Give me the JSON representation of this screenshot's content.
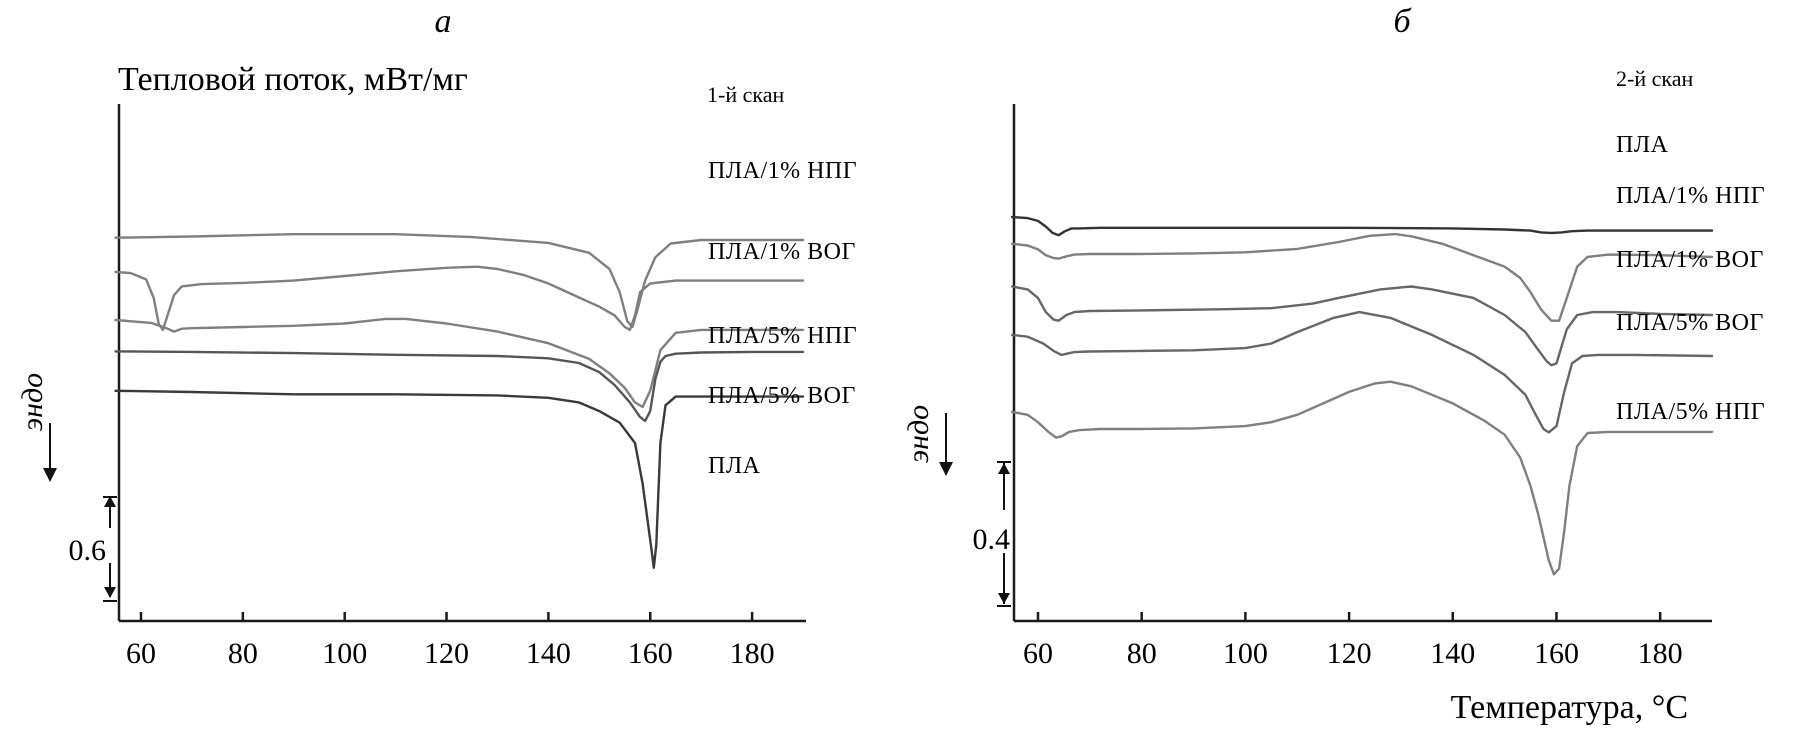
{
  "chart_data": [
    {
      "type": "line",
      "panel_title": "а",
      "scan_label": "1-й скан",
      "ylabel": "Тепловой поток, мВт/мг",
      "xlabel": "",
      "endo_label": "эндо",
      "scale_bar": "0.6",
      "xlim": [
        55,
        190
      ],
      "x_ticks": [
        "60",
        "80",
        "100",
        "120",
        "140",
        "160",
        "180"
      ],
      "y_ticks": [],
      "grid": false,
      "series": [
        {
          "name": "ПЛА/1% НПГ",
          "color": "#7f7f7f",
          "x": [
            55,
            70,
            90,
            110,
            125,
            140,
            148,
            152,
            154,
            155.5,
            156.5,
            157.5,
            159,
            161,
            164,
            170,
            180,
            190
          ],
          "y": [
            1.04,
            1.06,
            1.1,
            1.1,
            1.05,
            0.95,
            0.78,
            0.5,
            0.1,
            -0.4,
            -0.5,
            -0.2,
            0.3,
            0.7,
            0.94,
            1.0,
            1.0,
            1.0
          ]
        },
        {
          "name": "ПЛА/1% ВОГ",
          "color": "#7f7f7f",
          "x": [
            55,
            58,
            61,
            62.5,
            63.5,
            64.3,
            65.2,
            66.5,
            68,
            72,
            80,
            90,
            100,
            110,
            120,
            126,
            130,
            135,
            140,
            145,
            150,
            153,
            155,
            156,
            157,
            158,
            160,
            165,
            175,
            190
          ],
          "y": [
            0.45,
            0.43,
            0.32,
            0.0,
            -0.45,
            -0.55,
            -0.3,
            0.05,
            0.2,
            0.24,
            0.26,
            0.3,
            0.38,
            0.46,
            0.52,
            0.54,
            0.5,
            0.4,
            0.25,
            0.05,
            -0.15,
            -0.3,
            -0.5,
            -0.55,
            -0.3,
            0.1,
            0.25,
            0.3,
            0.3,
            0.3
          ]
        },
        {
          "name": "ПЛА/5% НПГ",
          "color": "#7f7f7f",
          "x": [
            55,
            62,
            65,
            66.5,
            68,
            70,
            80,
            90,
            100,
            108,
            112,
            120,
            130,
            140,
            148,
            152,
            155,
            157,
            158.5,
            160,
            162,
            165,
            170,
            180,
            190
          ],
          "y": [
            -0.38,
            -0.43,
            -0.52,
            -0.58,
            -0.53,
            -0.52,
            -0.5,
            -0.48,
            -0.44,
            -0.36,
            -0.36,
            -0.44,
            -0.58,
            -0.78,
            -1.05,
            -1.3,
            -1.55,
            -1.8,
            -1.88,
            -1.6,
            -0.9,
            -0.6,
            -0.55,
            -0.55,
            -0.55
          ]
        },
        {
          "name": "ПЛА/5% ВОГ",
          "color": "#555555",
          "x": [
            55,
            70,
            90,
            110,
            130,
            140,
            146,
            150,
            153,
            156,
            158,
            159,
            160,
            161,
            162,
            163,
            165,
            170,
            180,
            190
          ],
          "y": [
            -0.92,
            -0.93,
            -0.95,
            -0.98,
            -1.0,
            -1.04,
            -1.12,
            -1.28,
            -1.5,
            -1.8,
            -2.05,
            -2.12,
            -1.95,
            -1.4,
            -1.1,
            -1.0,
            -0.96,
            -0.94,
            -0.93,
            -0.93
          ]
        },
        {
          "name": "ПЛА",
          "color": "#3a3a3a",
          "x": [
            55,
            70,
            90,
            110,
            130,
            140,
            146,
            150,
            154,
            157,
            158.5,
            159.5,
            160.2,
            160.7,
            161.2,
            162,
            163,
            165,
            170,
            180,
            190
          ],
          "y": [
            -1.6,
            -1.62,
            -1.66,
            -1.66,
            -1.68,
            -1.72,
            -1.8,
            -1.95,
            -2.15,
            -2.5,
            -3.2,
            -3.85,
            -4.3,
            -4.65,
            -4.25,
            -2.5,
            -1.85,
            -1.7,
            -1.7,
            -1.7,
            -1.7
          ]
        }
      ]
    },
    {
      "type": "line",
      "panel_title": "б",
      "scan_label": "2-й скан",
      "ylabel": "",
      "xlabel": "Температура, °С",
      "endo_label": "эндо",
      "scale_bar": "0.4",
      "xlim": [
        55,
        190
      ],
      "x_ticks": [
        "60",
        "80",
        "100",
        "120",
        "140",
        "160",
        "180"
      ],
      "y_ticks": [],
      "grid": false,
      "series": [
        {
          "name": "ПЛА",
          "color": "#333333",
          "x": [
            55,
            58,
            60,
            61.5,
            62.8,
            64,
            65.2,
            66.5,
            68,
            72,
            80,
            100,
            120,
            140,
            150,
            155,
            157,
            159,
            161,
            163,
            166,
            175,
            190
          ],
          "y": [
            1.72,
            1.7,
            1.65,
            1.55,
            1.44,
            1.4,
            1.47,
            1.52,
            1.52,
            1.53,
            1.53,
            1.53,
            1.53,
            1.52,
            1.5,
            1.48,
            1.45,
            1.44,
            1.45,
            1.47,
            1.48,
            1.48,
            1.48
          ]
        },
        {
          "name": "ПЛА/1% НПГ",
          "color": "#7f7f7f",
          "x": [
            55,
            58,
            60,
            61.5,
            63,
            64,
            65.5,
            67,
            70,
            80,
            90,
            100,
            110,
            118,
            124,
            129,
            132,
            138,
            144,
            150,
            153,
            155,
            157,
            159,
            160.5,
            162,
            164,
            166,
            170,
            180,
            190
          ],
          "y": [
            1.25,
            1.22,
            1.15,
            1.05,
            1.0,
            0.99,
            1.03,
            1.06,
            1.07,
            1.07,
            1.08,
            1.1,
            1.16,
            1.28,
            1.39,
            1.42,
            1.38,
            1.25,
            1.05,
            0.85,
            0.65,
            0.4,
            0.1,
            -0.1,
            -0.1,
            0.3,
            0.85,
            1.02,
            1.06,
            1.05,
            1.02
          ]
        },
        {
          "name": "ПЛА/1% ВОГ",
          "color": "#666666",
          "x": [
            55,
            58,
            60,
            61.5,
            63,
            64,
            65.5,
            67,
            70,
            80,
            95,
            105,
            113,
            118,
            126,
            132,
            136,
            144,
            150,
            154,
            156,
            158,
            159,
            160,
            161,
            162,
            164,
            167,
            172,
            180,
            190
          ],
          "y": [
            0.5,
            0.45,
            0.3,
            0.05,
            -0.08,
            -0.1,
            0.0,
            0.05,
            0.07,
            0.08,
            0.1,
            0.12,
            0.2,
            0.3,
            0.45,
            0.5,
            0.45,
            0.3,
            0.0,
            -0.3,
            -0.55,
            -0.8,
            -0.88,
            -0.85,
            -0.55,
            -0.25,
            0.0,
            0.05,
            0.05,
            0.02,
            0.0
          ]
        },
        {
          "name": "ПЛА/5% ВОГ",
          "color": "#666666",
          "x": [
            55,
            58,
            61,
            63,
            64.5,
            65.5,
            67,
            70,
            80,
            90,
            100,
            105,
            110,
            117,
            122,
            128,
            136,
            144,
            150,
            154,
            156,
            157.5,
            158.5,
            160,
            161.5,
            163,
            165,
            168,
            175,
            190
          ],
          "y": [
            -0.35,
            -0.38,
            -0.5,
            -0.63,
            -0.7,
            -0.68,
            -0.65,
            -0.64,
            -0.63,
            -0.62,
            -0.58,
            -0.5,
            -0.3,
            -0.05,
            0.05,
            -0.05,
            -0.35,
            -0.7,
            -1.05,
            -1.4,
            -1.75,
            -2.0,
            -2.06,
            -1.95,
            -1.35,
            -0.85,
            -0.72,
            -0.7,
            -0.7,
            -0.72
          ]
        },
        {
          "name": "ПЛА/5% НПГ",
          "color": "#7f7f7f",
          "x": [
            55,
            58,
            60,
            62,
            63.5,
            64.5,
            66,
            68,
            72,
            80,
            90,
            100,
            105,
            110,
            115,
            120,
            125,
            128,
            132,
            140,
            146,
            150,
            153,
            155,
            156.5,
            157.5,
            158.5,
            159.5,
            160.5,
            161.5,
            162.5,
            164,
            166,
            170,
            180,
            190
          ],
          "y": [
            -1.7,
            -1.75,
            -1.88,
            -2.05,
            -2.15,
            -2.13,
            -2.05,
            -2.02,
            -2.0,
            -2.0,
            -1.99,
            -1.95,
            -1.88,
            -1.75,
            -1.55,
            -1.35,
            -1.2,
            -1.17,
            -1.25,
            -1.55,
            -1.85,
            -2.1,
            -2.5,
            -3.0,
            -3.5,
            -3.9,
            -4.3,
            -4.55,
            -4.45,
            -3.8,
            -3.0,
            -2.3,
            -2.07,
            -2.05,
            -2.05,
            -2.05
          ]
        }
      ]
    }
  ]
}
